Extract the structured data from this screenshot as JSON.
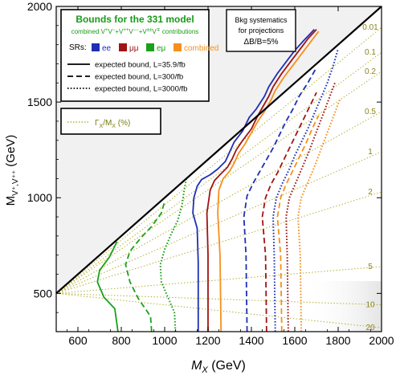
{
  "chart_data": {
    "type": "line",
    "xlabel": "M_X (GeV)",
    "ylabel": "M_{V⁺,V⁺⁺} (GeV)",
    "xlim": [
      500,
      2000
    ],
    "ylim": [
      300,
      2000
    ],
    "x_ticks": [
      600,
      800,
      1000,
      1200,
      1400,
      1600,
      1800,
      2000
    ],
    "y_ticks": [
      500,
      1000,
      1500,
      2000
    ],
    "legend": {
      "title": "Bounds for the 331 model",
      "subtitle": "combined V⁺V⁻+V⁺⁺V⁻⁻+V^{±±}V^∓ contributions",
      "srs_label": "SRs:",
      "srs": [
        {
          "label": "ee",
          "color": "#1f2fb5"
        },
        {
          "label": "μμ",
          "color": "#a01414"
        },
        {
          "label": "eμ",
          "color": "#1aa01a"
        },
        {
          "label": "combined",
          "color": "#f5901e"
        }
      ],
      "lines": [
        {
          "label": "expected bound, L=35.9/fb",
          "style": "solid"
        },
        {
          "label": "expected bound, L=300/fb",
          "style": "dashed"
        },
        {
          "label": "expected bound, L=3000/fb",
          "style": "dotted"
        }
      ],
      "width_label": "Γ_X/M_X (%)"
    },
    "systematics_box": [
      "Bkg systematics",
      "for projections",
      "ΔB/B=5%"
    ],
    "width_contours": [
      {
        "label": "0.01",
        "y_at_2000": 1890
      },
      {
        "label": "0.1",
        "y_at_2000": 1760
      },
      {
        "label": "0.2",
        "y_at_2000": 1660
      },
      {
        "label": "0.5",
        "y_at_2000": 1450
      },
      {
        "label": "1",
        "y_at_2000": 1240
      },
      {
        "label": "2",
        "y_at_2000": 1030
      },
      {
        "label": "5",
        "y_at_2000": 640
      },
      {
        "label": "10",
        "y_at_2000": 440
      },
      {
        "label": "20",
        "y_at_2000": 320
      }
    ],
    "series": [
      {
        "name": "ee",
        "lumi": "35.9",
        "color": "#1f2fb5",
        "dash": "solid",
        "points": [
          [
            1155,
            300
          ],
          [
            1155,
            660
          ],
          [
            1150,
            840
          ],
          [
            1130,
            920
          ],
          [
            1135,
            1000
          ],
          [
            1150,
            1060
          ],
          [
            1170,
            1095
          ],
          [
            1210,
            1120
          ],
          [
            1245,
            1150
          ],
          [
            1280,
            1190
          ],
          [
            1300,
            1240
          ],
          [
            1320,
            1290
          ],
          [
            1360,
            1350
          ],
          [
            1390,
            1420
          ],
          [
            1420,
            1460
          ],
          [
            1460,
            1530
          ],
          [
            1480,
            1580
          ],
          [
            1520,
            1650
          ],
          [
            1560,
            1710
          ],
          [
            1600,
            1770
          ],
          [
            1640,
            1820
          ],
          [
            1690,
            1880
          ]
        ]
      },
      {
        "name": "μμ",
        "lumi": "35.9",
        "color": "#a01414",
        "dash": "solid",
        "points": [
          [
            1200,
            300
          ],
          [
            1200,
            700
          ],
          [
            1195,
            920
          ],
          [
            1210,
            1040
          ],
          [
            1230,
            1090
          ],
          [
            1255,
            1120
          ],
          [
            1290,
            1160
          ],
          [
            1310,
            1200
          ],
          [
            1330,
            1250
          ],
          [
            1360,
            1300
          ],
          [
            1400,
            1360
          ],
          [
            1430,
            1430
          ],
          [
            1450,
            1470
          ],
          [
            1480,
            1530
          ],
          [
            1500,
            1580
          ],
          [
            1540,
            1650
          ],
          [
            1580,
            1710
          ],
          [
            1620,
            1770
          ],
          [
            1660,
            1830
          ],
          [
            1700,
            1880
          ]
        ]
      },
      {
        "name": "combined",
        "lumi": "35.9",
        "color": "#f5901e",
        "dash": "solid",
        "points": [
          [
            1260,
            300
          ],
          [
            1255,
            700
          ],
          [
            1245,
            920
          ],
          [
            1250,
            1040
          ],
          [
            1270,
            1100
          ],
          [
            1300,
            1140
          ],
          [
            1320,
            1180
          ],
          [
            1340,
            1230
          ],
          [
            1370,
            1280
          ],
          [
            1400,
            1340
          ],
          [
            1430,
            1400
          ],
          [
            1460,
            1450
          ],
          [
            1490,
            1510
          ],
          [
            1510,
            1560
          ],
          [
            1550,
            1630
          ],
          [
            1590,
            1690
          ],
          [
            1630,
            1750
          ],
          [
            1670,
            1810
          ],
          [
            1710,
            1870
          ]
        ]
      },
      {
        "name": "eμ",
        "lumi": "35.9",
        "color": "#1aa01a",
        "dash": "solid",
        "points": [
          [
            785,
            300
          ],
          [
            770,
            420
          ],
          [
            720,
            480
          ],
          [
            690,
            560
          ],
          [
            700,
            620
          ],
          [
            745,
            690
          ],
          [
            780,
            770
          ]
        ]
      },
      {
        "name": "ee",
        "lumi": "300",
        "color": "#1f2fb5",
        "dash": "dashed",
        "points": [
          [
            1380,
            300
          ],
          [
            1375,
            700
          ],
          [
            1365,
            900
          ],
          [
            1380,
            1010
          ],
          [
            1410,
            1080
          ],
          [
            1440,
            1140
          ],
          [
            1470,
            1200
          ],
          [
            1500,
            1260
          ],
          [
            1530,
            1330
          ],
          [
            1560,
            1400
          ],
          [
            1590,
            1460
          ],
          [
            1620,
            1530
          ],
          [
            1660,
            1600
          ],
          [
            1700,
            1680
          ]
        ]
      },
      {
        "name": "μμ",
        "lumi": "300",
        "color": "#a01414",
        "dash": "dashed",
        "points": [
          [
            1470,
            300
          ],
          [
            1465,
            700
          ],
          [
            1450,
            900
          ],
          [
            1465,
            1000
          ],
          [
            1490,
            1070
          ],
          [
            1520,
            1130
          ],
          [
            1550,
            1200
          ],
          [
            1580,
            1270
          ],
          [
            1610,
            1340
          ],
          [
            1640,
            1410
          ],
          [
            1670,
            1480
          ],
          [
            1700,
            1550
          ]
        ]
      },
      {
        "name": "combined",
        "lumi": "300",
        "color": "#f5901e",
        "dash": "dashed",
        "points": [
          [
            1540,
            300
          ],
          [
            1535,
            700
          ],
          [
            1520,
            900
          ],
          [
            1535,
            1000
          ],
          [
            1560,
            1070
          ],
          [
            1590,
            1140
          ],
          [
            1620,
            1210
          ],
          [
            1650,
            1280
          ],
          [
            1680,
            1360
          ],
          [
            1710,
            1430
          ]
        ]
      },
      {
        "name": "eμ",
        "lumi": "300",
        "color": "#1aa01a",
        "dash": "dashed",
        "points": [
          [
            940,
            300
          ],
          [
            935,
            380
          ],
          [
            880,
            470
          ],
          [
            840,
            560
          ],
          [
            820,
            650
          ],
          [
            840,
            720
          ],
          [
            890,
            790
          ],
          [
            940,
            850
          ],
          [
            985,
            920
          ],
          [
            1000,
            980
          ]
        ]
      },
      {
        "name": "ee",
        "lumi": "3000",
        "color": "#1f2fb5",
        "dash": "dotted",
        "points": [
          [
            1510,
            300
          ],
          [
            1505,
            700
          ],
          [
            1500,
            900
          ],
          [
            1515,
            1000
          ],
          [
            1545,
            1080
          ],
          [
            1575,
            1150
          ],
          [
            1600,
            1220
          ],
          [
            1630,
            1290
          ],
          [
            1660,
            1360
          ],
          [
            1690,
            1440
          ],
          [
            1720,
            1520
          ],
          [
            1750,
            1600
          ],
          [
            1780,
            1700
          ],
          [
            1800,
            1780
          ]
        ]
      },
      {
        "name": "μμ",
        "lumi": "3000",
        "color": "#a01414",
        "dash": "dotted",
        "points": [
          [
            1570,
            300
          ],
          [
            1565,
            700
          ],
          [
            1560,
            900
          ],
          [
            1575,
            1000
          ],
          [
            1605,
            1080
          ],
          [
            1635,
            1160
          ],
          [
            1665,
            1240
          ],
          [
            1695,
            1330
          ],
          [
            1725,
            1420
          ],
          [
            1755,
            1510
          ],
          [
            1785,
            1600
          ]
        ]
      },
      {
        "name": "combined",
        "lumi": "3000",
        "color": "#f5901e",
        "dash": "dotted",
        "points": [
          [
            1630,
            300
          ],
          [
            1625,
            700
          ],
          [
            1615,
            900
          ],
          [
            1630,
            1000
          ],
          [
            1660,
            1080
          ],
          [
            1690,
            1160
          ],
          [
            1720,
            1250
          ],
          [
            1750,
            1340
          ],
          [
            1780,
            1430
          ],
          [
            1810,
            1520
          ]
        ]
      },
      {
        "name": "eμ",
        "lumi": "3000",
        "color": "#1aa01a",
        "dash": "dotted",
        "points": [
          [
            1050,
            300
          ],
          [
            1045,
            400
          ],
          [
            1015,
            480
          ],
          [
            985,
            560
          ],
          [
            980,
            650
          ],
          [
            1000,
            730
          ],
          [
            1030,
            810
          ],
          [
            1060,
            880
          ],
          [
            1080,
            960
          ],
          [
            1090,
            1040
          ],
          [
            1100,
            1100
          ]
        ]
      }
    ]
  }
}
